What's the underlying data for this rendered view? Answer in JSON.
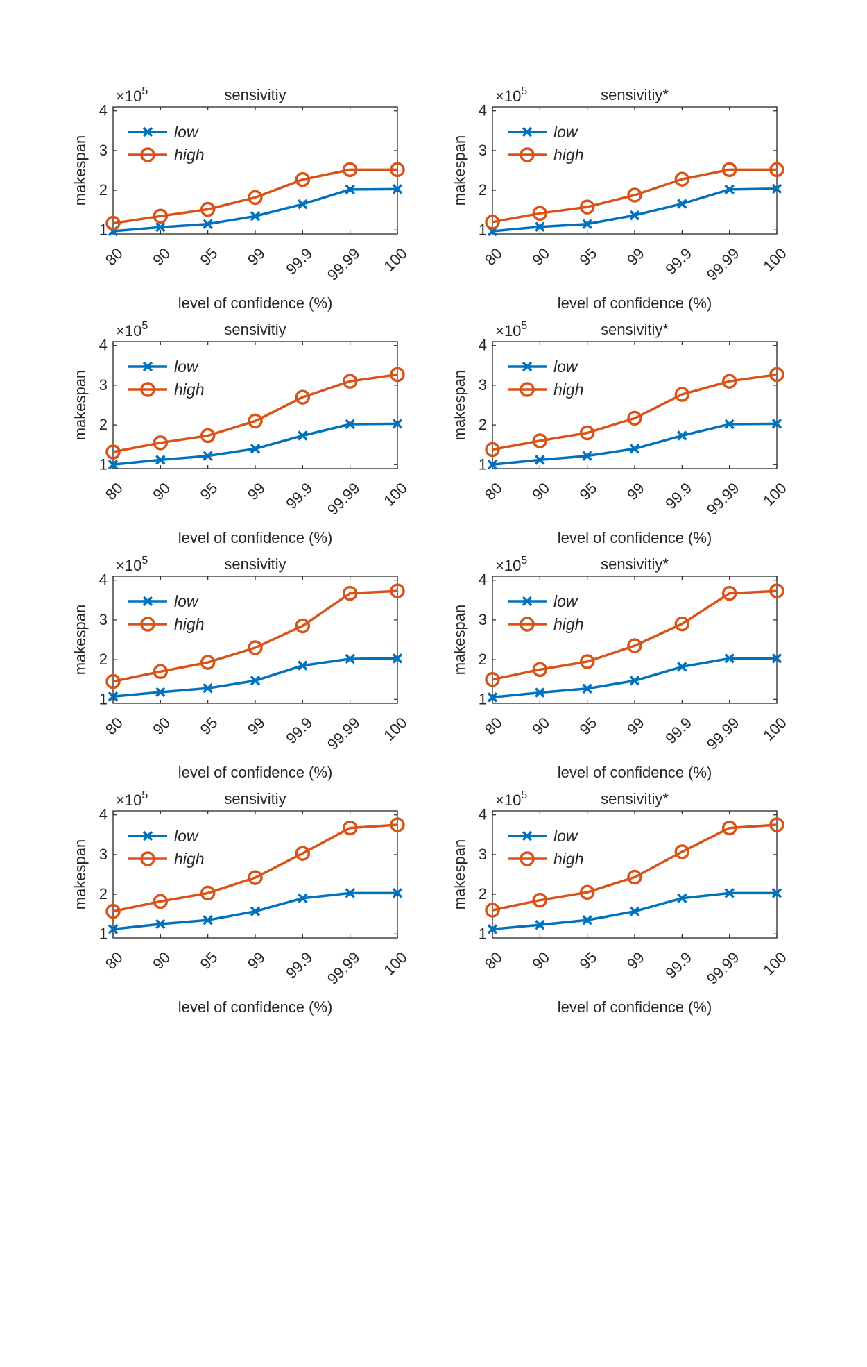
{
  "chart_data": [
    {
      "type": "line",
      "title": "sensivitiy",
      "xlabel": "level of confidence (%)",
      "ylabel": "makespan",
      "categories": [
        "80",
        "90",
        "95",
        "99",
        "99.9",
        "99.99",
        "100"
      ],
      "y_exponent": "×10",
      "y_exponent_power": "5",
      "ylim": [
        0.9,
        4.1
      ],
      "yticks": [
        "1",
        "2",
        "3",
        "4"
      ],
      "grid": false,
      "legend": "top-left",
      "series": [
        {
          "name": "low",
          "marker": "x",
          "color": "#0072BD",
          "values": [
            0.97,
            1.07,
            1.15,
            1.35,
            1.65,
            2.02,
            2.03
          ]
        },
        {
          "name": "high",
          "marker": "o",
          "color": "#D95319",
          "values": [
            1.17,
            1.35,
            1.52,
            1.82,
            2.27,
            2.52,
            2.52
          ]
        }
      ]
    },
    {
      "type": "line",
      "title": "sensivitiy*",
      "xlabel": "level of confidence (%)",
      "ylabel": "makespan",
      "categories": [
        "80",
        "90",
        "95",
        "99",
        "99.9",
        "99.99",
        "100"
      ],
      "y_exponent": "×10",
      "y_exponent_power": "5",
      "ylim": [
        0.9,
        4.1
      ],
      "yticks": [
        "1",
        "2",
        "3",
        "4"
      ],
      "grid": false,
      "legend": "top-left",
      "series": [
        {
          "name": "low",
          "marker": "x",
          "color": "#0072BD",
          "values": [
            0.97,
            1.08,
            1.15,
            1.37,
            1.66,
            2.02,
            2.04
          ]
        },
        {
          "name": "high",
          "marker": "o",
          "color": "#D95319",
          "values": [
            1.2,
            1.42,
            1.58,
            1.88,
            2.28,
            2.52,
            2.52
          ]
        }
      ]
    },
    {
      "type": "line",
      "title": "sensivitiy",
      "xlabel": "level of confidence (%)",
      "ylabel": "makespan",
      "categories": [
        "80",
        "90",
        "95",
        "99",
        "99.9",
        "99.99",
        "100"
      ],
      "y_exponent": "×10",
      "y_exponent_power": "5",
      "ylim": [
        0.9,
        4.1
      ],
      "yticks": [
        "1",
        "2",
        "3",
        "4"
      ],
      "grid": false,
      "legend": "top-left",
      "series": [
        {
          "name": "low",
          "marker": "x",
          "color": "#0072BD",
          "values": [
            1.0,
            1.12,
            1.22,
            1.4,
            1.73,
            2.02,
            2.03
          ]
        },
        {
          "name": "high",
          "marker": "o",
          "color": "#D95319",
          "values": [
            1.32,
            1.55,
            1.73,
            2.1,
            2.7,
            3.1,
            3.27
          ]
        }
      ]
    },
    {
      "type": "line",
      "title": "sensivitiy*",
      "xlabel": "level of confidence (%)",
      "ylabel": "makespan",
      "categories": [
        "80",
        "90",
        "95",
        "99",
        "99.9",
        "99.99",
        "100"
      ],
      "y_exponent": "×10",
      "y_exponent_power": "5",
      "ylim": [
        0.9,
        4.1
      ],
      "yticks": [
        "1",
        "2",
        "3",
        "4"
      ],
      "grid": false,
      "legend": "top-left",
      "series": [
        {
          "name": "low",
          "marker": "x",
          "color": "#0072BD",
          "values": [
            1.0,
            1.12,
            1.22,
            1.4,
            1.73,
            2.02,
            2.03
          ]
        },
        {
          "name": "high",
          "marker": "o",
          "color": "#D95319",
          "values": [
            1.38,
            1.6,
            1.8,
            2.17,
            2.77,
            3.1,
            3.27
          ]
        }
      ]
    },
    {
      "type": "line",
      "title": "sensivitiy",
      "xlabel": "level of confidence (%)",
      "ylabel": "makespan",
      "categories": [
        "80",
        "90",
        "95",
        "99",
        "99.9",
        "99.99",
        "100"
      ],
      "y_exponent": "×10",
      "y_exponent_power": "5",
      "ylim": [
        0.9,
        4.1
      ],
      "yticks": [
        "1",
        "2",
        "3",
        "4"
      ],
      "grid": false,
      "legend": "top-left",
      "series": [
        {
          "name": "low",
          "marker": "x",
          "color": "#0072BD",
          "values": [
            1.07,
            1.18,
            1.28,
            1.47,
            1.85,
            2.02,
            2.03
          ]
        },
        {
          "name": "high",
          "marker": "o",
          "color": "#D95319",
          "values": [
            1.45,
            1.7,
            1.93,
            2.3,
            2.85,
            3.67,
            3.73
          ]
        }
      ]
    },
    {
      "type": "line",
      "title": "sensivitiy*",
      "xlabel": "level of confidence (%)",
      "ylabel": "makespan",
      "categories": [
        "80",
        "90",
        "95",
        "99",
        "99.9",
        "99.99",
        "100"
      ],
      "y_exponent": "×10",
      "y_exponent_power": "5",
      "ylim": [
        0.9,
        4.1
      ],
      "yticks": [
        "1",
        "2",
        "3",
        "4"
      ],
      "grid": false,
      "legend": "top-left",
      "series": [
        {
          "name": "low",
          "marker": "x",
          "color": "#0072BD",
          "values": [
            1.05,
            1.17,
            1.27,
            1.47,
            1.82,
            2.03,
            2.03
          ]
        },
        {
          "name": "high",
          "marker": "o",
          "color": "#D95319",
          "values": [
            1.5,
            1.75,
            1.95,
            2.35,
            2.9,
            3.67,
            3.73
          ]
        }
      ]
    },
    {
      "type": "line",
      "title": "sensivitiy",
      "xlabel": "level of confidence (%)",
      "ylabel": "makespan",
      "categories": [
        "80",
        "90",
        "95",
        "99",
        "99.9",
        "99.99",
        "100"
      ],
      "y_exponent": "×10",
      "y_exponent_power": "5",
      "ylim": [
        0.9,
        4.1
      ],
      "yticks": [
        "1",
        "2",
        "3",
        "4"
      ],
      "grid": false,
      "legend": "top-left",
      "series": [
        {
          "name": "low",
          "marker": "x",
          "color": "#0072BD",
          "values": [
            1.12,
            1.25,
            1.35,
            1.57,
            1.9,
            2.03,
            2.03
          ]
        },
        {
          "name": "high",
          "marker": "o",
          "color": "#D95319",
          "values": [
            1.57,
            1.82,
            2.03,
            2.42,
            3.03,
            3.67,
            3.75
          ]
        }
      ]
    },
    {
      "type": "line",
      "title": "sensivitiy*",
      "xlabel": "level of confidence (%)",
      "ylabel": "makespan",
      "categories": [
        "80",
        "90",
        "95",
        "99",
        "99.9",
        "99.99",
        "100"
      ],
      "y_exponent": "×10",
      "y_exponent_power": "5",
      "ylim": [
        0.9,
        4.1
      ],
      "yticks": [
        "1",
        "2",
        "3",
        "4"
      ],
      "grid": false,
      "legend": "top-left",
      "series": [
        {
          "name": "low",
          "marker": "x",
          "color": "#0072BD",
          "values": [
            1.12,
            1.23,
            1.35,
            1.57,
            1.9,
            2.03,
            2.03
          ]
        },
        {
          "name": "high",
          "marker": "o",
          "color": "#D95319",
          "values": [
            1.6,
            1.85,
            2.05,
            2.43,
            3.07,
            3.67,
            3.75
          ]
        }
      ]
    }
  ]
}
